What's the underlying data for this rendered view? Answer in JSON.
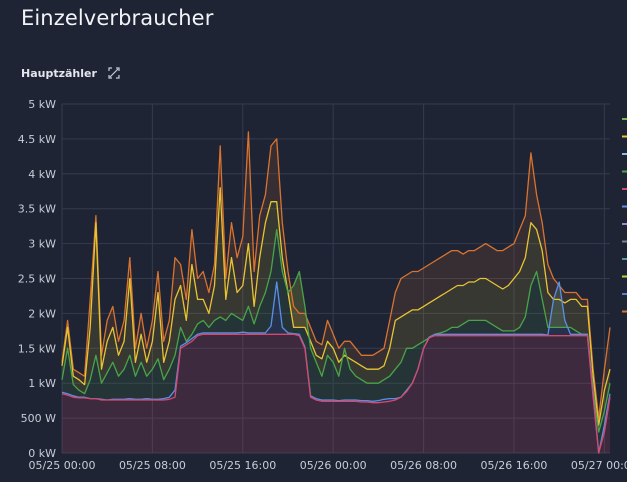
{
  "page": {
    "title": "Einzelverbraucher"
  },
  "panel": {
    "title": "Hauptzähler",
    "icon": "zoom-reset-icon"
  },
  "chart_data": {
    "type": "area",
    "title": "",
    "xlabel": "",
    "ylabel": "",
    "x_ticks": [
      "05/25 00:00",
      "05/25 08:00",
      "05/25 16:00",
      "05/26 00:00",
      "05/26 08:00",
      "05/26 16:00",
      "05/27 00:00"
    ],
    "y_ticks": [
      "0 kW",
      "500 W",
      "1 kW",
      "1.5 kW",
      "2 kW",
      "2.5 kW",
      "3 kW",
      "3.5 kW",
      "4 kW",
      "4.5 kW",
      "5 kW"
    ],
    "ylim": [
      0,
      5000
    ],
    "xlim_hours": [
      0,
      48.5
    ],
    "grid": true,
    "legend": "right",
    "x_hours": [
      0,
      0.5,
      1,
      1.5,
      2,
      2.5,
      3,
      3.5,
      4,
      4.5,
      5,
      5.5,
      6,
      6.5,
      7,
      7.5,
      8,
      8.5,
      9,
      9.5,
      10,
      10.5,
      11,
      11.5,
      12,
      12.5,
      13,
      13.5,
      14,
      14.5,
      15,
      15.5,
      16,
      16.5,
      17,
      17.5,
      18,
      18.5,
      19,
      19.5,
      20,
      20.5,
      21,
      21.5,
      22,
      22.5,
      23,
      23.5,
      24,
      24.5,
      25,
      25.5,
      26,
      26.5,
      27,
      27.5,
      28,
      28.5,
      29,
      29.5,
      30,
      30.5,
      31,
      31.5,
      32,
      32.5,
      33,
      33.5,
      34,
      34.5,
      35,
      35.5,
      36,
      36.5,
      37,
      37.5,
      38,
      38.5,
      39,
      39.5,
      40,
      40.5,
      41,
      41.5,
      42,
      42.5,
      43,
      43.5,
      44,
      44.5,
      45,
      45.5,
      46,
      46.5,
      47,
      47.5,
      48,
      48.5
    ],
    "series": [
      {
        "color": "#d44a6e",
        "values": [
          850,
          830,
          800,
          790,
          790,
          780,
          780,
          760,
          760,
          760,
          760,
          760,
          760,
          760,
          760,
          760,
          760,
          760,
          760,
          770,
          800,
          1500,
          1550,
          1600,
          1680,
          1700,
          1700,
          1700,
          1700,
          1700,
          1700,
          1700,
          1700,
          1700,
          1700,
          1700,
          1700,
          1700,
          1700,
          1700,
          1700,
          1700,
          1680,
          1500,
          800,
          760,
          740,
          740,
          740,
          740,
          740,
          740,
          740,
          730,
          730,
          720,
          720,
          730,
          740,
          760,
          800,
          880,
          1000,
          1200,
          1500,
          1650,
          1680,
          1680,
          1680,
          1680,
          1680,
          1680,
          1680,
          1680,
          1680,
          1680,
          1680,
          1680,
          1680,
          1680,
          1680,
          1680,
          1680,
          1680,
          1680,
          1680,
          1680,
          1680,
          1680,
          1680,
          1680,
          1680,
          1680,
          1680,
          800,
          0,
          300,
          800
        ]
      },
      {
        "color": "#5b8fe6",
        "values": [
          870,
          850,
          820,
          800,
          800,
          780,
          780,
          770,
          760,
          770,
          770,
          770,
          780,
          770,
          770,
          780,
          770,
          770,
          780,
          800,
          900,
          1530,
          1580,
          1640,
          1700,
          1720,
          1720,
          1720,
          1720,
          1720,
          1720,
          1720,
          1730,
          1720,
          1720,
          1720,
          1720,
          1820,
          2450,
          1800,
          1720,
          1710,
          1700,
          1520,
          820,
          780,
          760,
          760,
          760,
          750,
          760,
          760,
          760,
          750,
          750,
          740,
          750,
          770,
          780,
          780,
          800,
          900,
          1000,
          1200,
          1500,
          1660,
          1700,
          1700,
          1700,
          1700,
          1700,
          1700,
          1700,
          1700,
          1700,
          1700,
          1700,
          1700,
          1700,
          1700,
          1700,
          1700,
          1700,
          1700,
          1700,
          1700,
          1690,
          2200,
          2450,
          1900,
          1700,
          1700,
          1700,
          1700,
          850,
          0,
          400,
          850
        ]
      },
      {
        "color": "#4aa34a",
        "values": [
          1050,
          1500,
          980,
          900,
          850,
          1050,
          1400,
          1000,
          1150,
          1300,
          1100,
          1200,
          1400,
          1100,
          1300,
          1100,
          1200,
          1350,
          1050,
          1200,
          1400,
          1800,
          1600,
          1700,
          1850,
          1900,
          1800,
          1900,
          1950,
          1900,
          2000,
          1950,
          1900,
          2100,
          1850,
          2100,
          2300,
          2600,
          3200,
          2600,
          2300,
          2400,
          2600,
          2100,
          1500,
          1300,
          1100,
          1400,
          1300,
          1100,
          1500,
          1200,
          1100,
          1050,
          1000,
          1000,
          1000,
          1050,
          1100,
          1200,
          1300,
          1500,
          1500,
          1550,
          1600,
          1650,
          1700,
          1720,
          1750,
          1800,
          1800,
          1850,
          1900,
          1900,
          1900,
          1900,
          1850,
          1800,
          1750,
          1750,
          1750,
          1800,
          1950,
          2400,
          2600,
          2200,
          1800,
          1800,
          1800,
          1800,
          1800,
          1750,
          1700,
          1700,
          900,
          300,
          600,
          1000
        ]
      },
      {
        "color": "#e6c532",
        "values": [
          1250,
          1800,
          1100,
          1050,
          980,
          1800,
          3300,
          1200,
          1600,
          1800,
          1400,
          1600,
          2500,
          1300,
          1700,
          1300,
          1600,
          2300,
          1300,
          1600,
          2200,
          2400,
          1900,
          2700,
          2200,
          2200,
          2000,
          2400,
          3800,
          2200,
          2800,
          2300,
          2400,
          3000,
          2100,
          2800,
          3300,
          3600,
          3600,
          2800,
          2300,
          1800,
          1800,
          1800,
          1600,
          1400,
          1350,
          1600,
          1500,
          1300,
          1400,
          1350,
          1300,
          1250,
          1200,
          1200,
          1200,
          1250,
          1500,
          1900,
          1950,
          2000,
          2050,
          2050,
          2100,
          2150,
          2200,
          2250,
          2300,
          2350,
          2400,
          2400,
          2450,
          2450,
          2500,
          2500,
          2450,
          2400,
          2350,
          2400,
          2500,
          2600,
          2800,
          3300,
          3200,
          2900,
          2300,
          2200,
          2200,
          2150,
          2200,
          2200,
          2100,
          2100,
          1100,
          400,
          900,
          1200
        ]
      },
      {
        "color": "#d9732f",
        "values": [
          1300,
          1900,
          1200,
          1150,
          1100,
          2200,
          3400,
          1400,
          1900,
          2100,
          1600,
          1900,
          2800,
          1500,
          2000,
          1500,
          1900,
          2600,
          1600,
          1900,
          2800,
          2700,
          2200,
          3200,
          2500,
          2600,
          2300,
          2700,
          4400,
          2500,
          3300,
          2800,
          3100,
          4600,
          2600,
          3400,
          3700,
          4400,
          4500,
          3300,
          2600,
          2100,
          2000,
          2000,
          1800,
          1600,
          1550,
          1900,
          1700,
          1500,
          1600,
          1600,
          1500,
          1400,
          1400,
          1400,
          1450,
          1500,
          1900,
          2300,
          2500,
          2550,
          2600,
          2600,
          2650,
          2700,
          2750,
          2800,
          2850,
          2900,
          2900,
          2850,
          2900,
          2900,
          2950,
          3000,
          2950,
          2900,
          2900,
          2950,
          3000,
          3200,
          3400,
          4300,
          3700,
          3300,
          2700,
          2500,
          2400,
          2300,
          2300,
          2300,
          2200,
          2200,
          1200,
          500,
          1200,
          1800
        ]
      }
    ],
    "legend_colors": [
      "#6cc04a",
      "#e6c532",
      "#8ab8ef",
      "#4aa34a",
      "#d44a6e",
      "#5b8fe6",
      "#a97fd4",
      "#7c8090",
      "#4e9c9c",
      "#b8d43a",
      "#5c7cd4",
      "#d9732f"
    ]
  }
}
